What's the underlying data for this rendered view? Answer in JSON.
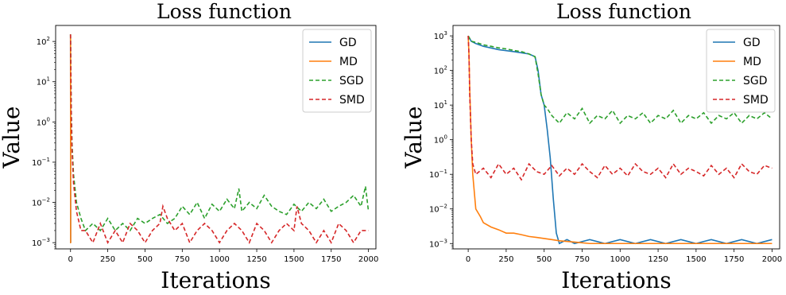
{
  "chart_data": [
    {
      "type": "line",
      "title": "Loss function",
      "xlabel": "Iterations",
      "ylabel": "Value",
      "yscale": "log",
      "xlim": [
        -100,
        2050
      ],
      "ylim": [
        0.0007,
        250
      ],
      "xticks": [
        0,
        250,
        500,
        750,
        1000,
        1250,
        1500,
        1750,
        2000
      ],
      "xtick_labels": [
        "0",
        "250",
        "500",
        "750",
        "1000",
        "1250",
        "1500",
        "1750",
        "2000"
      ],
      "yticks": [
        0.001,
        0.01,
        0.1,
        1,
        10,
        100
      ],
      "ytick_labels": [
        [
          "10",
          "−3"
        ],
        [
          "10",
          "−2"
        ],
        [
          "10",
          "−1"
        ],
        [
          "10",
          "0"
        ],
        [
          "10",
          "1"
        ],
        [
          "10",
          "2"
        ]
      ],
      "legend_position": "top-right",
      "series": [
        {
          "name": "GD",
          "color": "#1f77b4",
          "style": "solid",
          "x": [
            0,
            1,
            2,
            4
          ],
          "y": [
            150,
            0.001,
            0.001,
            0.001
          ]
        },
        {
          "name": "MD",
          "color": "#ff7f0e",
          "style": "solid",
          "x": [
            0,
            1,
            2,
            4
          ],
          "y": [
            150,
            0.001,
            0.001,
            0.001
          ]
        },
        {
          "name": "SGD",
          "color": "#2ca02c",
          "style": "dashed",
          "x": [
            0,
            5,
            10,
            20,
            40,
            70,
            100,
            150,
            200,
            250,
            300,
            350,
            400,
            450,
            500,
            550,
            600,
            650,
            700,
            750,
            800,
            850,
            900,
            950,
            1000,
            1050,
            1100,
            1130,
            1150,
            1200,
            1250,
            1300,
            1350,
            1400,
            1450,
            1500,
            1550,
            1600,
            1650,
            1700,
            1750,
            1800,
            1850,
            1900,
            1950,
            1980,
            2000
          ],
          "y": [
            150,
            2,
            0.3,
            0.05,
            0.01,
            0.004,
            0.002,
            0.003,
            0.002,
            0.004,
            0.002,
            0.003,
            0.002,
            0.004,
            0.003,
            0.004,
            0.005,
            0.003,
            0.004,
            0.008,
            0.005,
            0.01,
            0.004,
            0.009,
            0.006,
            0.012,
            0.007,
            0.022,
            0.006,
            0.01,
            0.007,
            0.015,
            0.008,
            0.006,
            0.005,
            0.009,
            0.006,
            0.01,
            0.007,
            0.012,
            0.006,
            0.008,
            0.01,
            0.015,
            0.008,
            0.025,
            0.006
          ]
        },
        {
          "name": "SMD",
          "color": "#d62728",
          "style": "dashed",
          "x": [
            0,
            5,
            10,
            20,
            40,
            70,
            100,
            150,
            200,
            250,
            300,
            350,
            400,
            450,
            500,
            550,
            600,
            620,
            650,
            700,
            750,
            800,
            850,
            900,
            950,
            1000,
            1050,
            1100,
            1150,
            1200,
            1250,
            1300,
            1350,
            1400,
            1450,
            1500,
            1520,
            1550,
            1600,
            1650,
            1700,
            1750,
            1800,
            1850,
            1900,
            1950,
            2000
          ],
          "y": [
            150,
            1.5,
            0.2,
            0.03,
            0.006,
            0.002,
            0.002,
            0.001,
            0.003,
            0.001,
            0.002,
            0.001,
            0.003,
            0.002,
            0.001,
            0.002,
            0.003,
            0.008,
            0.004,
            0.002,
            0.003,
            0.001,
            0.002,
            0.003,
            0.002,
            0.001,
            0.002,
            0.003,
            0.002,
            0.001,
            0.003,
            0.002,
            0.001,
            0.002,
            0.003,
            0.002,
            0.008,
            0.003,
            0.002,
            0.001,
            0.002,
            0.001,
            0.003,
            0.002,
            0.001,
            0.002,
            0.002
          ]
        }
      ]
    },
    {
      "type": "line",
      "title": "Loss function",
      "xlabel": "Iterations",
      "ylabel": "Value",
      "yscale": "log",
      "xlim": [
        -100,
        2050
      ],
      "ylim": [
        0.0007,
        2000
      ],
      "xticks": [
        0,
        250,
        500,
        750,
        1000,
        1250,
        1500,
        1750,
        2000
      ],
      "xtick_labels": [
        "0",
        "250",
        "500",
        "750",
        "1000",
        "1250",
        "1500",
        "1750",
        "2000"
      ],
      "yticks": [
        0.001,
        0.01,
        0.1,
        1,
        10,
        100,
        1000
      ],
      "ytick_labels": [
        [
          "10",
          "−3"
        ],
        [
          "10",
          "−2"
        ],
        [
          "10",
          "−1"
        ],
        [
          "10",
          "0"
        ],
        [
          "10",
          "1"
        ],
        [
          "10",
          "2"
        ],
        [
          "10",
          "3"
        ]
      ],
      "legend_position": "top-right",
      "series": [
        {
          "name": "GD",
          "color": "#1f77b4",
          "style": "solid",
          "x": [
            0,
            20,
            50,
            100,
            200,
            300,
            400,
            440,
            460,
            480,
            500,
            520,
            540,
            560,
            580,
            600,
            650,
            700,
            800,
            900,
            1000,
            1100,
            1200,
            1300,
            1400,
            1500,
            1600,
            1700,
            1800,
            1900,
            2000
          ],
          "y": [
            1000,
            700,
            600,
            500,
            400,
            350,
            300,
            250,
            100,
            20,
            10,
            2,
            0.3,
            0.02,
            0.002,
            0.001,
            0.0013,
            0.001,
            0.0013,
            0.001,
            0.0013,
            0.001,
            0.0013,
            0.001,
            0.0013,
            0.001,
            0.0013,
            0.001,
            0.0013,
            0.001,
            0.0013
          ]
        },
        {
          "name": "MD",
          "color": "#ff7f0e",
          "style": "solid",
          "x": [
            0,
            5,
            10,
            20,
            30,
            50,
            80,
            100,
            150,
            200,
            250,
            300,
            350,
            400,
            450,
            500,
            550,
            600,
            700,
            800,
            900,
            1000,
            1100,
            1200,
            1300,
            1400,
            1500,
            1600,
            1700,
            1800,
            1900,
            2000
          ],
          "y": [
            1000,
            300,
            30,
            1,
            0.1,
            0.01,
            0.006,
            0.004,
            0.003,
            0.0025,
            0.002,
            0.002,
            0.0018,
            0.0016,
            0.0015,
            0.0014,
            0.0013,
            0.0012,
            0.0011,
            0.001,
            0.001,
            0.001,
            0.001,
            0.001,
            0.001,
            0.001,
            0.001,
            0.001,
            0.001,
            0.001,
            0.001,
            0.001
          ]
        },
        {
          "name": "SGD",
          "color": "#2ca02c",
          "style": "dashed",
          "x": [
            0,
            20,
            50,
            100,
            150,
            200,
            250,
            300,
            350,
            400,
            440,
            460,
            480,
            500,
            520,
            550,
            600,
            650,
            700,
            750,
            800,
            850,
            900,
            950,
            1000,
            1050,
            1100,
            1150,
            1200,
            1250,
            1300,
            1350,
            1400,
            1450,
            1500,
            1550,
            1600,
            1650,
            1700,
            1750,
            1800,
            1850,
            1900,
            1950,
            2000
          ],
          "y": [
            1000,
            700,
            650,
            550,
            500,
            450,
            420,
            380,
            350,
            300,
            250,
            80,
            20,
            10,
            8,
            5,
            3,
            6,
            4,
            8,
            3,
            5,
            4,
            7,
            3,
            5,
            4,
            6,
            3,
            5,
            4,
            7,
            3,
            5,
            4,
            6,
            3,
            5,
            4,
            6,
            3,
            5,
            4,
            6,
            4
          ]
        },
        {
          "name": "SMD",
          "color": "#d62728",
          "style": "dashed",
          "x": [
            0,
            5,
            10,
            20,
            30,
            50,
            100,
            150,
            200,
            250,
            300,
            350,
            400,
            450,
            500,
            550,
            600,
            650,
            700,
            750,
            800,
            850,
            900,
            950,
            1000,
            1050,
            1100,
            1150,
            1200,
            1250,
            1300,
            1350,
            1400,
            1450,
            1500,
            1550,
            1600,
            1650,
            1700,
            1750,
            1800,
            1850,
            1900,
            1950,
            2000
          ],
          "y": [
            1000,
            300,
            20,
            1,
            0.2,
            0.1,
            0.15,
            0.08,
            0.2,
            0.1,
            0.15,
            0.07,
            0.2,
            0.12,
            0.1,
            0.18,
            0.09,
            0.15,
            0.1,
            0.2,
            0.12,
            0.08,
            0.18,
            0.1,
            0.15,
            0.09,
            0.2,
            0.12,
            0.1,
            0.15,
            0.08,
            0.2,
            0.1,
            0.15,
            0.12,
            0.09,
            0.18,
            0.1,
            0.15,
            0.08,
            0.2,
            0.12,
            0.1,
            0.18,
            0.15
          ]
        }
      ]
    }
  ]
}
